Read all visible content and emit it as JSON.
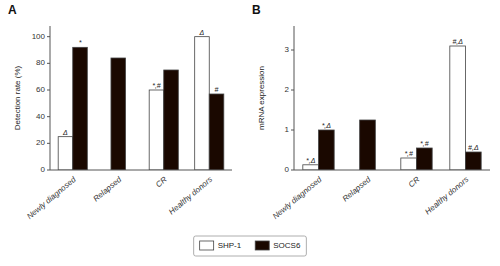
{
  "chart_data": [
    {
      "type": "bar",
      "title": "A",
      "y_label": "Detection rate (%)",
      "categories": [
        "Newly diagnosed",
        "Relapsed",
        "CR",
        "Healthy donors"
      ],
      "series": [
        {
          "name": "SHP-1",
          "color": "white",
          "values": [
            25,
            null,
            60,
            100
          ],
          "annotations": [
            "Δ",
            null,
            "*,#",
            "Δ"
          ]
        },
        {
          "name": "SOCS6",
          "color": "#1a0800",
          "values": [
            92,
            84,
            75,
            57
          ],
          "annotations": [
            "*",
            null,
            null,
            "#"
          ]
        }
      ],
      "ylim": [
        0,
        108
      ],
      "yticks": [
        0,
        20,
        40,
        60,
        80,
        100
      ],
      "legend": "bottom"
    },
    {
      "type": "bar",
      "title": "B",
      "y_label": "mRNA expression",
      "categories": [
        "Newly diagnosed",
        "Relapsed",
        "CR",
        "Healthy donors"
      ],
      "series": [
        {
          "name": "SHP-1",
          "color": "white",
          "values": [
            0.13,
            null,
            0.3,
            3.1
          ],
          "annotations": [
            "*,Δ",
            null,
            "*,#",
            "#,Δ"
          ]
        },
        {
          "name": "SOCS6",
          "color": "#1a0800",
          "values": [
            1.0,
            1.25,
            0.55,
            0.45
          ],
          "annotations": [
            "*,Δ",
            null,
            "*,#",
            "#,Δ"
          ]
        }
      ],
      "ylim": [
        0,
        3.6
      ],
      "yticks": [
        0,
        1,
        2,
        3
      ]
    }
  ]
}
